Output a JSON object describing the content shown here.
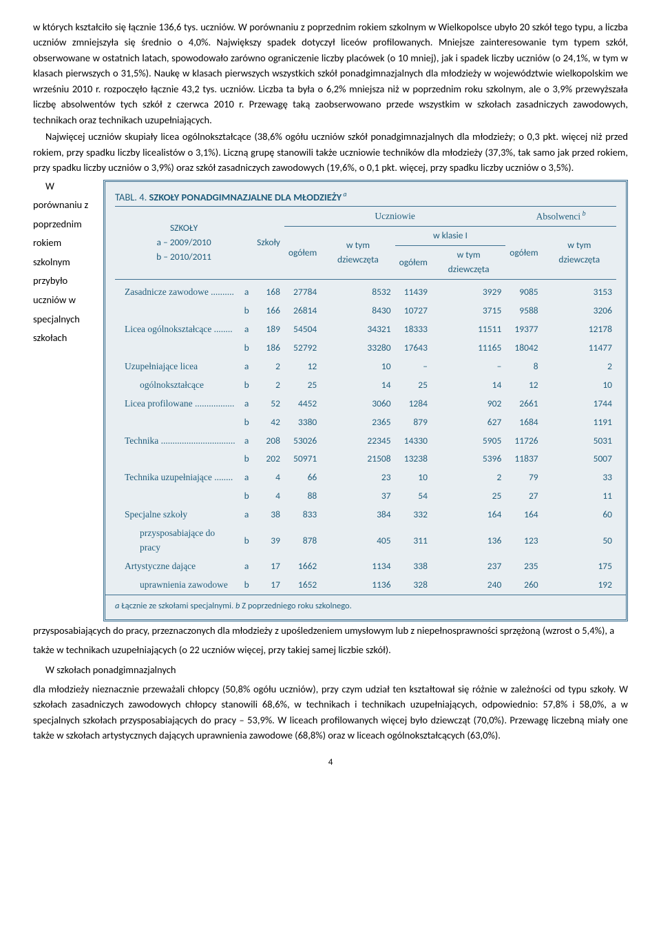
{
  "para1": "w których kształciło się łącznie 136,6 tys. uczniów. W porównaniu z poprzednim rokiem szkolnym w Wielkopolsce ubyło 20 szkół tego typu, a liczba uczniów zmniejszyła się średnio o 4,0%. Największy spadek dotyczył liceów profilowanych. Mniejsze zainteresowanie tym typem szkół, obserwowane w ostatnich latach, spowodowało zarówno ograniczenie liczby placówek (o 10 mniej), jak i spadek liczby uczniów (o 24,1%, w tym w klasach pierwszych o 31,5%). Naukę w klasach pierwszych wszystkich szkół ponadgimnazjalnych dla młodzieży w województwie wielkopolskim we wrześniu 2010 r. rozpoczęło łącznie 43,2 tys. uczniów. Liczba ta była o 6,2% mniejsza niż w poprzednim roku szkolnym, ale o 3,9% przewyższała liczbę absolwentów tych szkół z czerwca 2010 r. Przewagę taką zaobserwowano przede wszystkim w szkołach zasadniczych zawodowych, technikach oraz technikach uzupełniających.",
  "para2": "Najwięcej uczniów skupiały licea ogólnokształcące (38,6% ogółu uczniów szkół ponadgimnazjalnych dla młodzieży; o 0,3 pkt. więcej niż przed rokiem, przy spadku liczby licealistów o 3,1%). Liczną grupę stanowili także uczniowie techników dla młodzieży (37,3%, tak samo jak przed rokiem, przy spadku liczby uczniów o 3,9%) oraz szkół zasadniczych zawodowych (19,6%, o 0,1 pkt. więcej, przy spadku liczby uczniów o 3,5%). W porównaniu z poprzednim rokiem szkolnym przybyło uczniów w specjalnych szkołach przysposabiających do pracy, przeznaczonych dla młodzieży z upośledzeniem umysłowym lub z niepełnosprawności sprzężoną (wzrost o 5,4%), a także w technikach uzupełniających (o 22 uczniów więcej, przy takiej samej liczbie szkół).",
  "para2b": "W szkołach ponadgimnazjalnych",
  "para3": "dla młodzieży nieznacznie przeważali chłopcy (50,8% ogółu uczniów), przy czym udział ten kształtował się różnie w zależności od typu szkoły. W szkołach zasadniczych zawodowych chłopcy stanowili 68,6%, w technikach i technikach uzupełniających, odpowiednio: 57,8% i 58,0%, a w specjalnych szkołach przysposabiających do pracy – 53,9%. W liceach profilowanych więcej było dziewcząt (70,0%). Przewagę liczebną miały one także w szkołach artystycznych dających uprawnienia zawodowe (68,8%) oraz w liceach ogólnokształcących (63,0%).",
  "table": {
    "title_a": "TABL. 4. ",
    "title_b": "SZKOŁY  PONADGIMNAZJALNE  DLA  MŁODZIEŻY",
    "hdr_szkoly": "SZKOŁY",
    "hdr_a": "a – 2009/2010",
    "hdr_b": "b – 2010/2011",
    "col_szkoly": "Szkoły",
    "col_uczn": "Uczniowie",
    "col_abs": "Absolwenci",
    "col_ogol": "ogółem",
    "col_dz": "w tym dziewczęta",
    "col_kl1": "w klasie I",
    "rows": [
      {
        "l": "Zasadnicze zawodowe ..........",
        "sub": false,
        "a": [
          168,
          27784,
          8532,
          11439,
          3929,
          9085,
          3153
        ],
        "b": [
          166,
          26814,
          8430,
          10727,
          3715,
          9588,
          3206
        ]
      },
      {
        "l": "Licea ogólnokształcące ........",
        "sub": false,
        "a": [
          189,
          54504,
          34321,
          18333,
          11511,
          19377,
          12178
        ],
        "b": [
          186,
          52792,
          33280,
          17643,
          11165,
          18042,
          11477
        ]
      },
      {
        "l": "Uzupełniające licea",
        "sub": false,
        "a": [
          2,
          12,
          10,
          "–",
          "–",
          8,
          2
        ],
        "b": null
      },
      {
        "l": "ogólnokształcące",
        "sub": true,
        "a": null,
        "b": [
          2,
          25,
          14,
          25,
          14,
          12,
          10
        ]
      },
      {
        "l": "Licea profilowane .................",
        "sub": false,
        "a": [
          52,
          4452,
          3060,
          1284,
          902,
          2661,
          1744
        ],
        "b": [
          42,
          3380,
          2365,
          879,
          627,
          1684,
          1191
        ]
      },
      {
        "l": "Technika ................................",
        "sub": false,
        "a": [
          208,
          53026,
          22345,
          14330,
          5905,
          11726,
          5031
        ],
        "b": [
          202,
          50971,
          21508,
          13238,
          5396,
          11837,
          5007
        ]
      },
      {
        "l": "Technika uzupełniające ........",
        "sub": false,
        "a": [
          4,
          66,
          23,
          10,
          2,
          79,
          33
        ],
        "b": [
          4,
          88,
          37,
          54,
          25,
          27,
          11
        ]
      },
      {
        "l": "Specjalne szkoły",
        "sub": false,
        "a": [
          38,
          833,
          384,
          332,
          164,
          164,
          60
        ],
        "b": null
      },
      {
        "l": "przysposabiające do pracy",
        "sub": true,
        "a": null,
        "b": [
          39,
          878,
          405,
          311,
          136,
          123,
          50
        ]
      },
      {
        "l": "Artystyczne dające",
        "sub": false,
        "a": [
          17,
          1662,
          1134,
          338,
          237,
          235,
          175
        ],
        "b": null
      },
      {
        "l": "uprawnienia zawodowe",
        "sub": true,
        "a": null,
        "b": [
          17,
          1652,
          1136,
          328,
          240,
          260,
          192
        ]
      }
    ],
    "foot_a": "a",
    "foot_at": "  Łącznie ze szkołami specjalnymi.   ",
    "foot_b": "b",
    "foot_bt": "  Z poprzedniego roku szkolnego."
  },
  "pagenum": "4"
}
